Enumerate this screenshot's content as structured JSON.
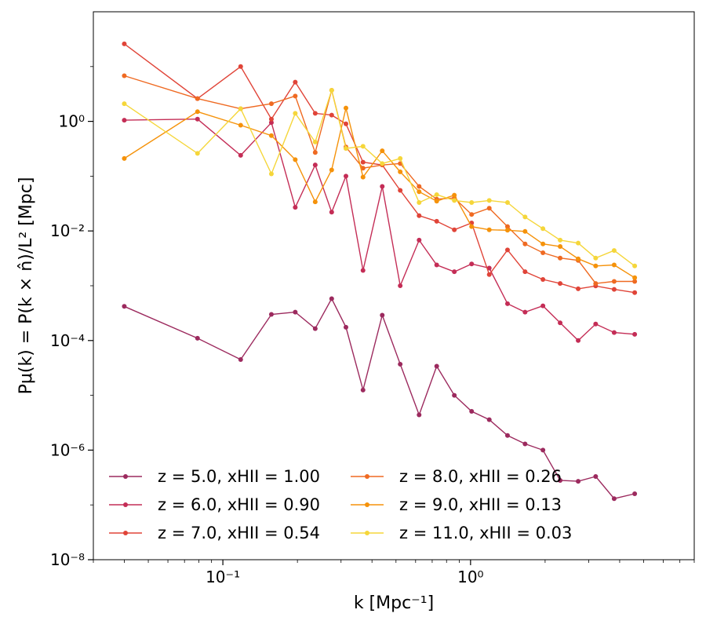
{
  "chart_data": {
    "type": "line",
    "scale": {
      "x": "log",
      "y": "log"
    },
    "xlim": [
      0.03,
      8.0
    ],
    "ylim": [
      1e-08,
      100
    ],
    "xlabel": "k [Mpc⁻¹]",
    "ylabel": "Pμ(k) = P(k × n̂)/L² [Mpc]",
    "x_ticks": [
      {
        "value": 0.1,
        "label": "10⁻¹"
      },
      {
        "value": 1.0,
        "label": "10⁰"
      }
    ],
    "y_ticks": [
      {
        "value": 1e-08,
        "label": "10⁻⁸"
      },
      {
        "value": 1e-06,
        "label": "10⁻⁶"
      },
      {
        "value": 0.0001,
        "label": "10⁻⁴"
      },
      {
        "value": 0.01,
        "label": "10⁻²"
      },
      {
        "value": 1,
        "label": "10⁰"
      }
    ],
    "legend_position": "lower-left",
    "x": [
      0.04,
      0.079,
      0.118,
      0.157,
      0.196,
      0.236,
      0.275,
      0.314,
      0.368,
      0.44,
      0.52,
      0.62,
      0.73,
      0.86,
      1.01,
      1.19,
      1.41,
      1.66,
      1.96,
      2.3,
      2.72,
      3.2,
      3.8,
      4.6
    ],
    "series": [
      {
        "name": "z = 5.0, xHII = 1.00",
        "color": "#9c2a5e",
        "values": [
          0.00042,
          0.00011,
          4.5e-05,
          0.0003,
          0.00033,
          0.000165,
          0.00058,
          0.000175,
          1.25e-05,
          0.00029,
          3.7e-05,
          4.4e-06,
          3.4e-05,
          1e-05,
          5.1e-06,
          3.6e-06,
          1.85e-06,
          1.3e-06,
          1e-06,
          2.8e-07,
          2.7e-07,
          3.3e-07,
          1.3e-07,
          1.6e-07
        ]
      },
      {
        "name": "z = 6.0, xHII = 0.90",
        "color": "#c42d56",
        "values": [
          1.05,
          1.1,
          0.24,
          0.95,
          0.027,
          0.16,
          0.022,
          0.1,
          0.0019,
          0.065,
          0.001,
          0.0068,
          0.0024,
          0.0018,
          0.0025,
          0.0021,
          0.00047,
          0.00033,
          0.00043,
          0.00021,
          0.0001,
          0.0002,
          0.00014,
          0.00013
        ]
      },
      {
        "name": "z = 7.0, xHII = 0.54",
        "color": "#e04438",
        "values": [
          26,
          2.6,
          10,
          1.1,
          5.2,
          1.4,
          1.3,
          0.9,
          0.18,
          0.16,
          0.055,
          0.019,
          0.015,
          0.0105,
          0.014,
          0.0016,
          0.0045,
          0.0018,
          0.0013,
          0.0011,
          0.00088,
          0.00099,
          0.00086,
          0.00075
        ]
      },
      {
        "name": "z = 8.0, xHII = 0.26",
        "color": "#ef6a22",
        "values": [
          6.8,
          2.6,
          1.7,
          2.1,
          2.9,
          0.27,
          3.7,
          0.34,
          0.14,
          0.16,
          0.17,
          0.065,
          0.038,
          0.04,
          0.02,
          0.026,
          0.012,
          0.0058,
          0.004,
          0.0032,
          0.0029,
          0.0011,
          0.0012,
          0.0012
        ]
      },
      {
        "name": "z = 9.0, xHII = 0.13",
        "color": "#f5920a",
        "values": [
          0.21,
          1.5,
          0.85,
          0.55,
          0.2,
          0.034,
          0.13,
          1.75,
          0.096,
          0.29,
          0.12,
          0.052,
          0.035,
          0.045,
          0.012,
          0.0105,
          0.0103,
          0.0098,
          0.0058,
          0.0052,
          0.0031,
          0.0023,
          0.0024,
          0.0014
        ]
      },
      {
        "name": "z = 11.0, xHII = 0.03",
        "color": "#f5d63a",
        "values": [
          2.1,
          0.26,
          1.7,
          0.11,
          1.4,
          0.42,
          3.7,
          0.32,
          0.35,
          0.17,
          0.21,
          0.033,
          0.046,
          0.036,
          0.033,
          0.036,
          0.033,
          0.018,
          0.011,
          0.0068,
          0.006,
          0.0032,
          0.0044,
          0.0023
        ]
      }
    ]
  }
}
